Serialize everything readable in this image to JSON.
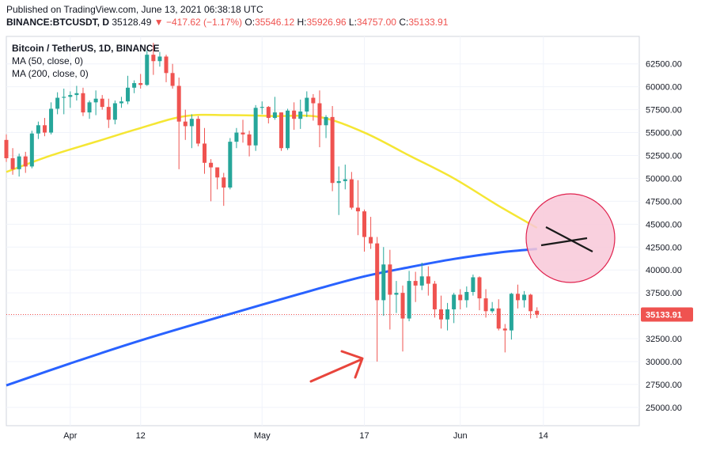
{
  "header": {
    "published": "Published on TradingView.com, June 13, 2021 06:38:18 UTC",
    "symbol": "BINANCE:BTCUSDT, D",
    "last": "35128.49",
    "arrow": "▼",
    "change": "−417.62 (−1.17%)",
    "ohlc": [
      {
        "label": "O:",
        "value": "35546.12"
      },
      {
        "label": "H:",
        "value": "35926.96"
      },
      {
        "label": "L:",
        "value": "34757.00"
      },
      {
        "label": "C:",
        "value": "35133.91"
      }
    ]
  },
  "legend": {
    "title": "Bitcoin / TetherUS, 1D, BINANCE",
    "ma50": "MA (50, close, 0)",
    "ma200": "MA (200, close, 0)"
  },
  "colors": {
    "up": "#26a69a",
    "down": "#ef5350",
    "ma50": "#f5e634",
    "ma200": "#2962ff",
    "circle_fill": "#f8c8d8",
    "circle_stroke": "#e0224e",
    "arrow": "#e8453c"
  },
  "price_tag": "35133.91",
  "chart_data": {
    "type": "candlestick",
    "y_ticks": [
      "62500.00",
      "60000.00",
      "57500.00",
      "55000.00",
      "52500.00",
      "50000.00",
      "47500.00",
      "45000.00",
      "42500.00",
      "40000.00",
      "37500.00",
      "35000.00",
      "32500.00",
      "30000.00",
      "27500.00",
      "25000.00"
    ],
    "y_tick_values": [
      62500,
      60000,
      57500,
      55000,
      52500,
      50000,
      47500,
      45000,
      42500,
      40000,
      37500,
      35000,
      32500,
      30000,
      27500,
      25000
    ],
    "ylim": [
      23000,
      65500
    ],
    "x_tick_labels": [
      "Apr",
      "12",
      "May",
      "17",
      "Jun",
      "14"
    ],
    "x_tick_dates": [
      "2021-04-01",
      "2021-04-12",
      "2021-05-01",
      "2021-05-17",
      "2021-06-01",
      "2021-06-14"
    ],
    "x_start": "2021-03-22",
    "x_end": "2021-06-29",
    "current_price": 35133.91,
    "candles": [
      {
        "d": "2021-03-22",
        "o": 54200,
        "h": 54800,
        "l": 51800,
        "c": 52200
      },
      {
        "d": "2021-03-23",
        "o": 52200,
        "h": 53300,
        "l": 50400,
        "c": 51000
      },
      {
        "d": "2021-03-24",
        "o": 51000,
        "h": 52700,
        "l": 50200,
        "c": 52400
      },
      {
        "d": "2021-03-25",
        "o": 52400,
        "h": 52900,
        "l": 50600,
        "c": 51300
      },
      {
        "d": "2021-03-26",
        "o": 51300,
        "h": 55200,
        "l": 51100,
        "c": 54900
      },
      {
        "d": "2021-03-27",
        "o": 54900,
        "h": 56200,
        "l": 54300,
        "c": 55800
      },
      {
        "d": "2021-03-28",
        "o": 55800,
        "h": 56600,
        "l": 54600,
        "c": 55000
      },
      {
        "d": "2021-03-29",
        "o": 55000,
        "h": 58300,
        "l": 54800,
        "c": 57600
      },
      {
        "d": "2021-03-30",
        "o": 57600,
        "h": 59400,
        "l": 57000,
        "c": 58800
      },
      {
        "d": "2021-03-31",
        "o": 58800,
        "h": 59800,
        "l": 57000,
        "c": 58900
      },
      {
        "d": "2021-04-01",
        "o": 58900,
        "h": 59500,
        "l": 57700,
        "c": 59100
      },
      {
        "d": "2021-04-02",
        "o": 59100,
        "h": 60100,
        "l": 58500,
        "c": 59300
      },
      {
        "d": "2021-04-03",
        "o": 59300,
        "h": 59900,
        "l": 56800,
        "c": 57200
      },
      {
        "d": "2021-04-04",
        "o": 57200,
        "h": 58500,
        "l": 56500,
        "c": 58300
      },
      {
        "d": "2021-04-05",
        "o": 58300,
        "h": 59600,
        "l": 56900,
        "c": 58700
      },
      {
        "d": "2021-04-06",
        "o": 58700,
        "h": 59100,
        "l": 57500,
        "c": 57800
      },
      {
        "d": "2021-04-07",
        "o": 57800,
        "h": 58700,
        "l": 55500,
        "c": 56400
      },
      {
        "d": "2021-04-08",
        "o": 56400,
        "h": 58500,
        "l": 55900,
        "c": 58200
      },
      {
        "d": "2021-04-09",
        "o": 58200,
        "h": 58900,
        "l": 57700,
        "c": 58400
      },
      {
        "d": "2021-04-10",
        "o": 58400,
        "h": 61200,
        "l": 58100,
        "c": 59900
      },
      {
        "d": "2021-04-11",
        "o": 59900,
        "h": 60700,
        "l": 59300,
        "c": 60400
      },
      {
        "d": "2021-04-12",
        "o": 60400,
        "h": 61400,
        "l": 59800,
        "c": 60200
      },
      {
        "d": "2021-04-13",
        "o": 60200,
        "h": 64000,
        "l": 60100,
        "c": 63500
      },
      {
        "d": "2021-04-14",
        "o": 63500,
        "h": 64800,
        "l": 61300,
        "c": 62800
      },
      {
        "d": "2021-04-15",
        "o": 62800,
        "h": 63800,
        "l": 62200,
        "c": 63300
      },
      {
        "d": "2021-04-16",
        "o": 63300,
        "h": 63500,
        "l": 60500,
        "c": 61500
      },
      {
        "d": "2021-04-17",
        "o": 61500,
        "h": 62500,
        "l": 59800,
        "c": 60100
      },
      {
        "d": "2021-04-18",
        "o": 60100,
        "h": 61000,
        "l": 51000,
        "c": 56200
      },
      {
        "d": "2021-04-19",
        "o": 56200,
        "h": 57500,
        "l": 54200,
        "c": 55700
      },
      {
        "d": "2021-04-20",
        "o": 55700,
        "h": 57000,
        "l": 53300,
        "c": 56500
      },
      {
        "d": "2021-04-21",
        "o": 56500,
        "h": 56800,
        "l": 53500,
        "c": 53800
      },
      {
        "d": "2021-04-22",
        "o": 53800,
        "h": 55500,
        "l": 50500,
        "c": 51700
      },
      {
        "d": "2021-04-23",
        "o": 51700,
        "h": 52100,
        "l": 47500,
        "c": 51200
      },
      {
        "d": "2021-04-24",
        "o": 51200,
        "h": 51200,
        "l": 48800,
        "c": 50100
      },
      {
        "d": "2021-04-25",
        "o": 50100,
        "h": 50600,
        "l": 47000,
        "c": 49000
      },
      {
        "d": "2021-04-26",
        "o": 49000,
        "h": 54400,
        "l": 48800,
        "c": 54000
      },
      {
        "d": "2021-04-27",
        "o": 54000,
        "h": 55500,
        "l": 53300,
        "c": 55000
      },
      {
        "d": "2021-04-28",
        "o": 55000,
        "h": 56400,
        "l": 53900,
        "c": 54800
      },
      {
        "d": "2021-04-29",
        "o": 54800,
        "h": 55200,
        "l": 52400,
        "c": 53600
      },
      {
        "d": "2021-04-30",
        "o": 53600,
        "h": 58000,
        "l": 53000,
        "c": 57700
      },
      {
        "d": "2021-05-01",
        "o": 57700,
        "h": 58400,
        "l": 57000,
        "c": 57800
      },
      {
        "d": "2021-05-02",
        "o": 57800,
        "h": 57900,
        "l": 56000,
        "c": 56600
      },
      {
        "d": "2021-05-03",
        "o": 56600,
        "h": 58900,
        "l": 56400,
        "c": 57200
      },
      {
        "d": "2021-05-04",
        "o": 57200,
        "h": 57200,
        "l": 53000,
        "c": 53300
      },
      {
        "d": "2021-05-05",
        "o": 53300,
        "h": 57600,
        "l": 53100,
        "c": 57400
      },
      {
        "d": "2021-05-06",
        "o": 57400,
        "h": 58300,
        "l": 55300,
        "c": 56500
      },
      {
        "d": "2021-05-07",
        "o": 56500,
        "h": 58600,
        "l": 55400,
        "c": 57300
      },
      {
        "d": "2021-05-08",
        "o": 57300,
        "h": 59500,
        "l": 56700,
        "c": 58800
      },
      {
        "d": "2021-05-09",
        "o": 58800,
        "h": 59200,
        "l": 56300,
        "c": 58200
      },
      {
        "d": "2021-05-10",
        "o": 58200,
        "h": 59600,
        "l": 53400,
        "c": 55800
      },
      {
        "d": "2021-05-11",
        "o": 55800,
        "h": 56900,
        "l": 54400,
        "c": 56700
      },
      {
        "d": "2021-05-12",
        "o": 56700,
        "h": 57900,
        "l": 48600,
        "c": 49500
      },
      {
        "d": "2021-05-13",
        "o": 49500,
        "h": 51300,
        "l": 46000,
        "c": 49700
      },
      {
        "d": "2021-05-14",
        "o": 49700,
        "h": 51500,
        "l": 48800,
        "c": 49900
      },
      {
        "d": "2021-05-15",
        "o": 49900,
        "h": 50700,
        "l": 46600,
        "c": 46800
      },
      {
        "d": "2021-05-16",
        "o": 46800,
        "h": 49800,
        "l": 43800,
        "c": 46400
      },
      {
        "d": "2021-05-17",
        "o": 46400,
        "h": 46600,
        "l": 42000,
        "c": 43600
      },
      {
        "d": "2021-05-18",
        "o": 43600,
        "h": 45800,
        "l": 42300,
        "c": 42900
      },
      {
        "d": "2021-05-19",
        "o": 42900,
        "h": 43600,
        "l": 30000,
        "c": 36700
      },
      {
        "d": "2021-05-20",
        "o": 36700,
        "h": 42500,
        "l": 35000,
        "c": 40600
      },
      {
        "d": "2021-05-21",
        "o": 40600,
        "h": 42200,
        "l": 33500,
        "c": 37300
      },
      {
        "d": "2021-05-22",
        "o": 37300,
        "h": 38800,
        "l": 35300,
        "c": 37500
      },
      {
        "d": "2021-05-23",
        "o": 37500,
        "h": 38300,
        "l": 31100,
        "c": 34700
      },
      {
        "d": "2021-05-24",
        "o": 34700,
        "h": 39900,
        "l": 34400,
        "c": 38800
      },
      {
        "d": "2021-05-25",
        "o": 38800,
        "h": 39800,
        "l": 36500,
        "c": 38300
      },
      {
        "d": "2021-05-26",
        "o": 38300,
        "h": 40800,
        "l": 37800,
        "c": 39300
      },
      {
        "d": "2021-05-27",
        "o": 39300,
        "h": 40400,
        "l": 37200,
        "c": 38500
      },
      {
        "d": "2021-05-28",
        "o": 38500,
        "h": 38800,
        "l": 34800,
        "c": 35700
      },
      {
        "d": "2021-05-29",
        "o": 35700,
        "h": 37200,
        "l": 33600,
        "c": 34600
      },
      {
        "d": "2021-05-30",
        "o": 34600,
        "h": 36400,
        "l": 33400,
        "c": 35700
      },
      {
        "d": "2021-05-31",
        "o": 35700,
        "h": 37500,
        "l": 34200,
        "c": 37300
      },
      {
        "d": "2021-06-01",
        "o": 37300,
        "h": 37900,
        "l": 35700,
        "c": 36700
      },
      {
        "d": "2021-06-02",
        "o": 36700,
        "h": 38200,
        "l": 35900,
        "c": 37600
      },
      {
        "d": "2021-06-03",
        "o": 37600,
        "h": 39500,
        "l": 37200,
        "c": 39200
      },
      {
        "d": "2021-06-04",
        "o": 39200,
        "h": 39300,
        "l": 35600,
        "c": 36900
      },
      {
        "d": "2021-06-05",
        "o": 36900,
        "h": 37900,
        "l": 34800,
        "c": 35500
      },
      {
        "d": "2021-06-06",
        "o": 35500,
        "h": 36500,
        "l": 35300,
        "c": 35800
      },
      {
        "d": "2021-06-07",
        "o": 35800,
        "h": 36800,
        "l": 33400,
        "c": 33600
      },
      {
        "d": "2021-06-08",
        "o": 33600,
        "h": 34100,
        "l": 31000,
        "c": 33400
      },
      {
        "d": "2021-06-09",
        "o": 33400,
        "h": 37500,
        "l": 32400,
        "c": 37400
      },
      {
        "d": "2021-06-10",
        "o": 37400,
        "h": 38400,
        "l": 35800,
        "c": 36700
      },
      {
        "d": "2021-06-11",
        "o": 36700,
        "h": 37700,
        "l": 35900,
        "c": 37300
      },
      {
        "d": "2021-06-12",
        "o": 37300,
        "h": 37400,
        "l": 34700,
        "c": 35500
      },
      {
        "d": "2021-06-13",
        "o": 35546,
        "h": 35927,
        "l": 34757,
        "c": 35134
      }
    ],
    "series": [
      {
        "name": "MA (50, close, 0)",
        "points": [
          {
            "d": "2021-03-22",
            "v": 50700
          },
          {
            "d": "2021-03-29",
            "v": 52500
          },
          {
            "d": "2021-04-05",
            "v": 54000
          },
          {
            "d": "2021-04-12",
            "v": 55500
          },
          {
            "d": "2021-04-19",
            "v": 56800
          },
          {
            "d": "2021-04-26",
            "v": 56900
          },
          {
            "d": "2021-05-03",
            "v": 56800
          },
          {
            "d": "2021-05-10",
            "v": 56700
          },
          {
            "d": "2021-05-17",
            "v": 55000
          },
          {
            "d": "2021-05-24",
            "v": 52500
          },
          {
            "d": "2021-05-31",
            "v": 50000
          },
          {
            "d": "2021-06-07",
            "v": 47000
          },
          {
            "d": "2021-06-13",
            "v": 44600
          }
        ]
      },
      {
        "name": "MA (200, close, 0)",
        "points": [
          {
            "d": "2021-03-22",
            "v": 27400
          },
          {
            "d": "2021-04-01",
            "v": 29800
          },
          {
            "d": "2021-04-12",
            "v": 32300
          },
          {
            "d": "2021-04-26",
            "v": 35200
          },
          {
            "d": "2021-05-10",
            "v": 38000
          },
          {
            "d": "2021-05-17",
            "v": 39300
          },
          {
            "d": "2021-05-24",
            "v": 40300
          },
          {
            "d": "2021-05-31",
            "v": 41200
          },
          {
            "d": "2021-06-07",
            "v": 41900
          },
          {
            "d": "2021-06-13",
            "v": 42300
          }
        ]
      }
    ]
  }
}
